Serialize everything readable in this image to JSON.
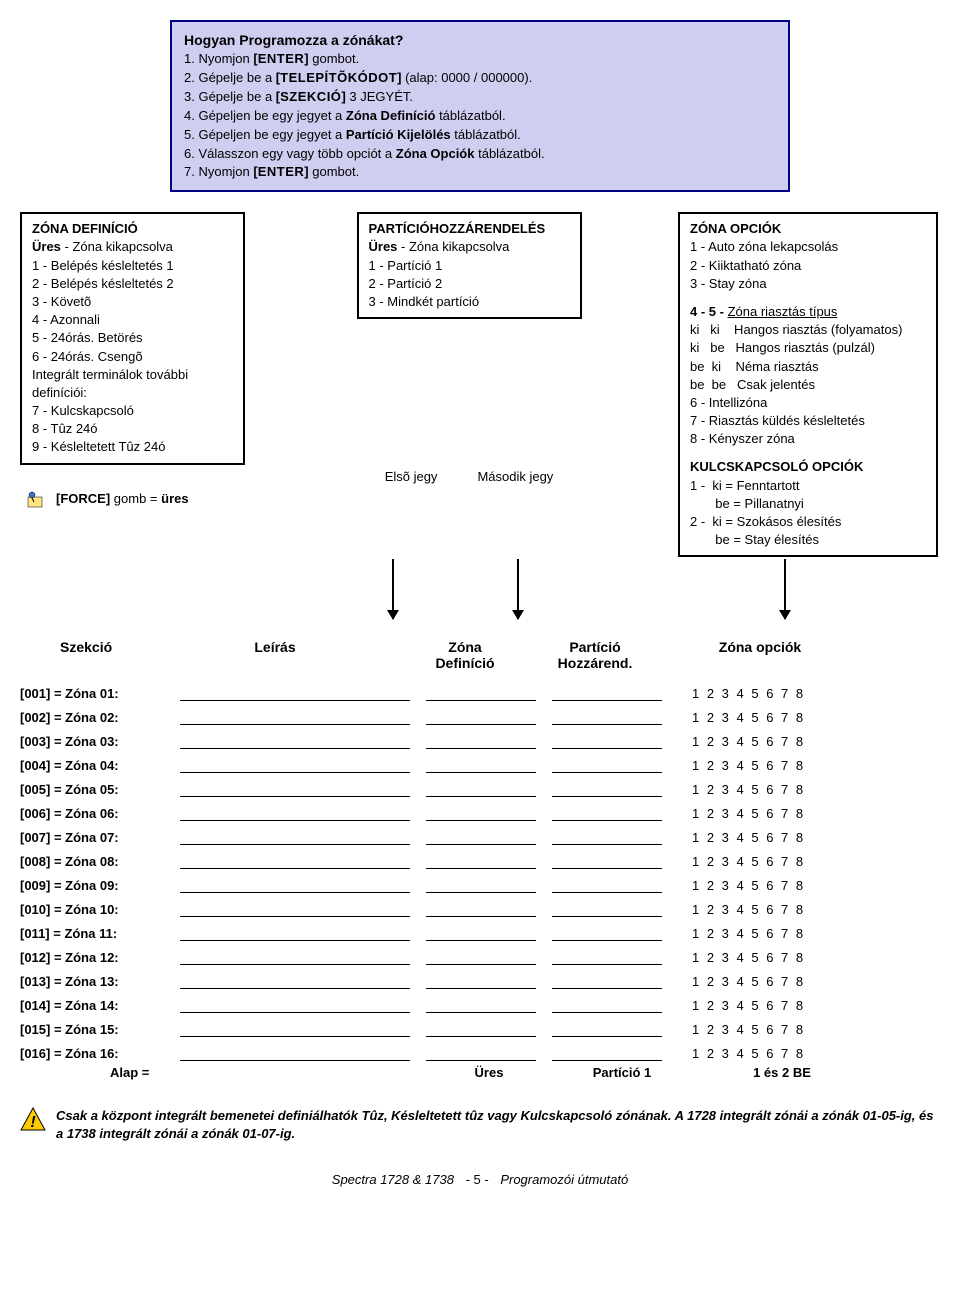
{
  "bluebox": {
    "title": "Hogyan Programozza a zónákat?",
    "steps": [
      {
        "n": "1.",
        "pre": "Nyomjon ",
        "brak": "[ENTER]",
        "post": " gombot."
      },
      {
        "n": "2.",
        "pre": "Gépelje be a ",
        "brak": "[TELEPÍTÕKÓDOT]",
        "post": " (alap: 0000 / 000000)."
      },
      {
        "n": "3.",
        "pre": "Gépelje be a ",
        "brak": "[SZEKCIÓ]",
        "post": " 3 JEGYÉT."
      },
      {
        "n": "4.",
        "pre": "Gépeljen be egy jegyet a ",
        "boldA": "Zóna Definíció",
        "post": " táblázatból."
      },
      {
        "n": "5.",
        "pre": "Gépeljen be egy jegyet a ",
        "boldA": "Partíció Kijelölés",
        "post": " táblázatból."
      },
      {
        "n": "6.",
        "pre": "Válasszon egy vagy több opciót a ",
        "boldA": "Zóna Opciók",
        "post": " táblázatból."
      },
      {
        "n": "7.",
        "pre": "Nyomjon ",
        "brak": "[ENTER]",
        "post": " gombot."
      }
    ]
  },
  "zdef": {
    "title": "ZÓNA DEFINÍCIÓ",
    "lines": [
      "Üres - Zóna kikapcsolva",
      "1 - Belépés késleltetés 1",
      "2 - Belépés késleltetés 2",
      "3 - Követõ",
      "4 - Azonnali",
      "5 - 24órás. Betörés",
      "6 - 24órás. Csengõ"
    ],
    "sub": "Integrált terminálok további definíciói:",
    "sublines": [
      "7 - Kulcskapcsoló",
      "8 - Tûz 24ó",
      "9 - Késleltetett Tûz 24ó"
    ]
  },
  "part": {
    "title": "PARTÍCIÓHOZZÁRENDELÉS",
    "lines": [
      "Üres - Zóna kikapcsolva",
      "1 - Partíció 1",
      "2 - Partíció 2",
      "3 - Mindkét partíció"
    ]
  },
  "opts": {
    "title": "ZÓNA OPCIÓK",
    "l1": "1 - Auto zóna lekapcsolás",
    "l2": "2 - Kiiktatható zóna",
    "l3": "3 - Stay zóna",
    "l4a": "4 -  5 -  ",
    "l4b": "Zóna riasztás típus",
    "l5": "ki   ki    Hangos riasztás (folyamatos)",
    "l6": "ki   be   Hangos riasztás (pulzál)",
    "l7": "be  ki    Néma riasztás",
    "l8": "be  be   Csak jelentés",
    "l9": "6 - Intellizóna",
    "l10": "7 - Riasztás küldés késleltetés",
    "l11": "8 - Kényszer zóna",
    "k_title": "KULCSKAPCSOLÓ OPCIÓK",
    "k1": "1 -  ki = Fenntartott",
    "k2": "       be = Pillanatnyi",
    "k3": "2 -  ki = Szokásos élesítés",
    "k4": "       be = Stay élesítés"
  },
  "force": {
    "pre": "[FORCE]",
    "mid": " gomb = ",
    "post": "üres"
  },
  "jegy": {
    "a": "Elsõ jegy",
    "b": "Második jegy"
  },
  "headers": {
    "sz": "Szekció",
    "le": "Leírás",
    "zd": "Zóna\nDefiníció",
    "ph": "Partíció\nHozzárend.",
    "zo": "Zóna opciók"
  },
  "rows": [
    {
      "code": "[001]",
      "name": "Zóna 01:"
    },
    {
      "code": "[002]",
      "name": "Zóna 02:"
    },
    {
      "code": "[003]",
      "name": "Zóna 03:"
    },
    {
      "code": "[004]",
      "name": "Zóna 04:"
    },
    {
      "code": "[005]",
      "name": "Zóna 05:"
    },
    {
      "code": "[006]",
      "name": "Zóna 06:"
    },
    {
      "code": "[007]",
      "name": "Zóna 07:"
    },
    {
      "code": "[008]",
      "name": "Zóna 08:"
    },
    {
      "code": "[009]",
      "name": "Zóna 09:"
    },
    {
      "code": "[010]",
      "name": "Zóna 10:"
    },
    {
      "code": "[011]",
      "name": "Zóna 11:"
    },
    {
      "code": "[012]",
      "name": "Zóna 12:"
    },
    {
      "code": "[013]",
      "name": "Zóna 13:"
    },
    {
      "code": "[014]",
      "name": "Zóna 14:"
    },
    {
      "code": "[015]",
      "name": "Zóna 15:"
    },
    {
      "code": "[016]",
      "name": "Zóna 16:"
    }
  ],
  "opts_digits": "1 2 3 4 5 6 7 8",
  "alap": {
    "lbl": "Alap =",
    "zd": "Üres",
    "ph": "Partíció 1",
    "zo": "1 és 2 BE"
  },
  "warn": "Csak a központ integrált bemenetei definiálhatók Tûz, Késleltetett tûz vagy Kulcskapcsoló zónának. A 1728 integrált zónái a zónák 01-05-ig, és a 1738 integrált zónái a zónák 01-07-ig.",
  "footer": {
    "left": "Spectra 1728 & 1738",
    "page": "- 5 -",
    "right": "Programozói útmutató"
  }
}
